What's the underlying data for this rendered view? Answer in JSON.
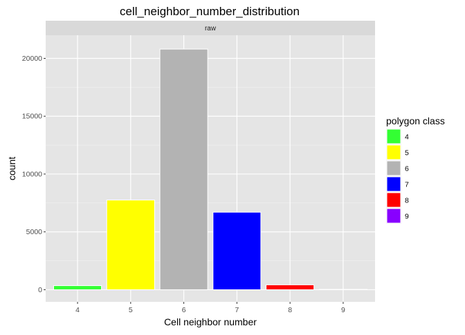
{
  "chart_data": {
    "type": "bar",
    "title": "cell_neighbor_number_distribution",
    "facet_label": "raw",
    "xlabel": "Cell neighbor number",
    "ylabel": "count",
    "categories": [
      "4",
      "5",
      "6",
      "7",
      "8",
      "9"
    ],
    "values": [
      350,
      7750,
      20800,
      6700,
      420,
      30
    ],
    "colors": [
      "#33FF33",
      "#FFFF00",
      "#B3B3B3",
      "#0000FF",
      "#FF0000",
      "#8800FF"
    ],
    "ylim": [
      -1050,
      22000
    ],
    "yticks": [
      0,
      5000,
      10000,
      15000,
      20000
    ],
    "ytick_labels": [
      "0",
      "5000",
      "10000",
      "15000",
      "20000"
    ],
    "grid": true,
    "legend": {
      "title": "polygon class",
      "position": "right",
      "entries": [
        "4",
        "5",
        "6",
        "7",
        "8",
        "9"
      ]
    }
  }
}
